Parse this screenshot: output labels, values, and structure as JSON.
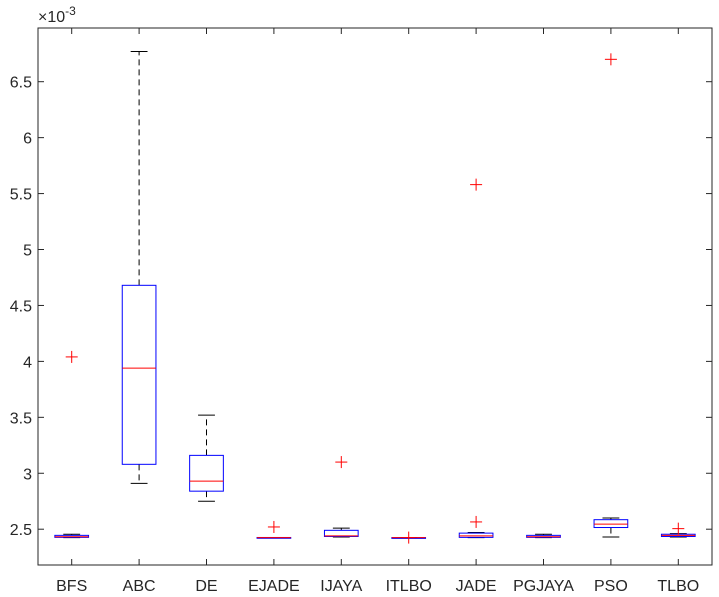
{
  "chart_data": {
    "type": "boxplot",
    "title": "",
    "xlabel": "",
    "ylabel": "",
    "y_exponent_label": "×10",
    "y_exponent_power": "-3",
    "ylim": [
      2.18,
      6.98
    ],
    "yticks": [
      2.5,
      3,
      3.5,
      4,
      4.5,
      5,
      5.5,
      6,
      6.5
    ],
    "ytick_labels": [
      "2.5",
      "3",
      "3.5",
      "4",
      "4.5",
      "5",
      "5.5",
      "6",
      "6.5"
    ],
    "grid": false,
    "colors": {
      "box": "#0000ff",
      "median": "#ff0000",
      "whisker": "#000000",
      "outlier": "#ff0000",
      "axis": "#262626"
    },
    "categories": [
      "BFS",
      "ABC",
      "DE",
      "EJADE",
      "IJAYA",
      "ITLBO",
      "JADE",
      "PGJAYA",
      "PSO",
      "TLBO"
    ],
    "boxes": [
      {
        "name": "BFS",
        "whisker_low": 2.425,
        "q1": 2.427,
        "median": 2.432,
        "q3": 2.445,
        "whisker_high": 2.455,
        "outliers": [
          4.04
        ]
      },
      {
        "name": "ABC",
        "whisker_low": 2.91,
        "q1": 3.08,
        "median": 3.94,
        "q3": 4.68,
        "whisker_high": 6.77,
        "outliers": []
      },
      {
        "name": "DE",
        "whisker_low": 2.75,
        "q1": 2.84,
        "median": 2.93,
        "q3": 3.16,
        "whisker_high": 3.52,
        "outliers": []
      },
      {
        "name": "EJADE",
        "whisker_low": 2.425,
        "q1": 2.425,
        "median": 2.425,
        "q3": 2.426,
        "whisker_high": 2.426,
        "outliers": [
          2.52
        ]
      },
      {
        "name": "IJAYA",
        "whisker_low": 2.43,
        "q1": 2.435,
        "median": 2.44,
        "q3": 2.49,
        "whisker_high": 2.51,
        "outliers": [
          3.1
        ]
      },
      {
        "name": "ITLBO",
        "whisker_low": 2.425,
        "q1": 2.425,
        "median": 2.425,
        "q3": 2.425,
        "whisker_high": 2.425,
        "outliers": [
          2.425
        ]
      },
      {
        "name": "JADE",
        "whisker_low": 2.425,
        "q1": 2.427,
        "median": 2.44,
        "q3": 2.465,
        "whisker_high": 2.47,
        "outliers": [
          2.565,
          5.58
        ]
      },
      {
        "name": "PGJAYA",
        "whisker_low": 2.425,
        "q1": 2.427,
        "median": 2.432,
        "q3": 2.445,
        "whisker_high": 2.455,
        "outliers": []
      },
      {
        "name": "PSO",
        "whisker_low": 2.43,
        "q1": 2.515,
        "median": 2.545,
        "q3": 2.585,
        "whisker_high": 2.6,
        "outliers": [
          6.7
        ]
      },
      {
        "name": "TLBO",
        "whisker_low": 2.43,
        "q1": 2.435,
        "median": 2.445,
        "q3": 2.455,
        "whisker_high": 2.46,
        "outliers": [
          2.505
        ]
      }
    ]
  }
}
